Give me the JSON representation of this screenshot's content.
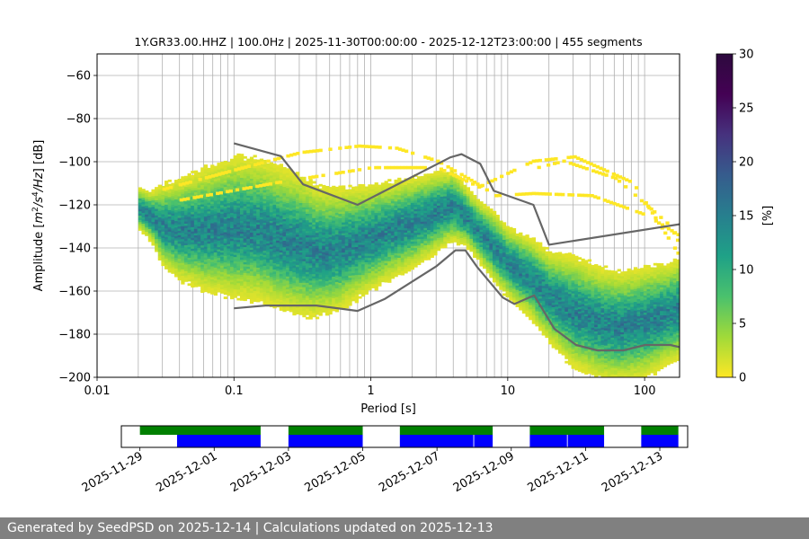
{
  "chart_data": [
    {
      "type": "heatmap",
      "title": "1Y.GR33.00.HHZ | 100.0Hz | 2025-11-30T00:00:00 - 2025-12-12T23:00:00 | 455 segments",
      "xlabel": "Period [s]",
      "ylabel_parts": [
        "Amplitude [",
        "m",
        "2",
        "/",
        "s",
        "4",
        "/",
        "Hz",
        "] [dB]"
      ],
      "x_scale": "log",
      "xlim": [
        0.01,
        180
      ],
      "ylim": [
        -200,
        -50
      ],
      "x_ticks": [
        {
          "value": 0.01,
          "label": "0.01"
        },
        {
          "value": 0.1,
          "label": "0.1"
        },
        {
          "value": 1,
          "label": "1"
        },
        {
          "value": 10,
          "label": "10"
        },
        {
          "value": 100,
          "label": "100"
        }
      ],
      "y_ticks": [
        {
          "value": -60,
          "label": "−60"
        },
        {
          "value": -80,
          "label": "−80"
        },
        {
          "value": -100,
          "label": "−100"
        },
        {
          "value": -120,
          "label": "−120"
        },
        {
          "value": -140,
          "label": "−140"
        },
        {
          "value": -160,
          "label": "−160"
        },
        {
          "value": -180,
          "label": "−180"
        },
        {
          "value": -200,
          "label": "−200"
        }
      ],
      "grid": true,
      "grid_minor_x": true,
      "grid_color": "#b0b0b0",
      "colormap": "viridis_r",
      "psd_core": [
        [
          0.02,
          -122,
          4
        ],
        [
          0.025,
          -126,
          5
        ],
        [
          0.03,
          -130,
          8
        ],
        [
          0.04,
          -132,
          10
        ],
        [
          0.06,
          -132,
          12
        ],
        [
          0.1,
          -131,
          14
        ],
        [
          0.15,
          -132,
          14
        ],
        [
          0.2,
          -135,
          14
        ],
        [
          0.3,
          -139,
          14
        ],
        [
          0.4,
          -142,
          13
        ],
        [
          0.6,
          -141,
          12
        ],
        [
          0.8,
          -138,
          11
        ],
        [
          1.2,
          -134,
          10
        ],
        [
          2,
          -129,
          9
        ],
        [
          3,
          -124,
          8
        ],
        [
          4,
          -121,
          7
        ],
        [
          5,
          -126,
          6
        ],
        [
          6,
          -132,
          6
        ],
        [
          8,
          -140,
          7
        ],
        [
          10,
          -147,
          7
        ],
        [
          15,
          -155,
          8
        ],
        [
          20,
          -163,
          9
        ],
        [
          30,
          -170,
          11
        ],
        [
          50,
          -176,
          11
        ],
        [
          70,
          -177,
          11
        ],
        [
          100,
          -175,
          11
        ],
        [
          150,
          -171,
          10
        ],
        [
          180,
          -169,
          10
        ]
      ],
      "sparse_tracks": [
        {
          "points": [
            [
              0.03,
              -113
            ],
            [
              0.1,
              -104
            ],
            [
              0.3,
              -96
            ],
            [
              0.8,
              -93
            ],
            [
              1.5,
              -94
            ],
            [
              3,
              -100
            ],
            [
              5,
              -108
            ],
            [
              8,
              -116
            ],
            [
              15,
              -115
            ],
            [
              40,
              -116
            ],
            [
              100,
              -125
            ],
            [
              180,
              -135
            ]
          ],
          "width": 1.5
        },
        {
          "points": [
            [
              0.04,
              -118
            ],
            [
              0.2,
              -110
            ],
            [
              1,
              -103
            ],
            [
              3,
              -103
            ],
            [
              6,
              -112
            ],
            [
              15,
              -100
            ],
            [
              30,
              -98
            ],
            [
              80,
              -110
            ],
            [
              180,
              -145
            ]
          ],
          "width": 1.5
        },
        {
          "points": [
            [
              14,
              -104
            ],
            [
              25,
              -100
            ],
            [
              60,
              -108
            ],
            [
              150,
              -130
            ],
            [
              180,
              -140
            ]
          ],
          "width": 1.5
        }
      ],
      "noise_models": {
        "high": [
          [
            0.1,
            -91.5
          ],
          [
            0.22,
            -97.4
          ],
          [
            0.32,
            -110.5
          ],
          [
            0.8,
            -120.0
          ],
          [
            3.8,
            -98.0
          ],
          [
            4.6,
            -96.5
          ],
          [
            6.3,
            -101.0
          ],
          [
            7.9,
            -113.5
          ],
          [
            15.4,
            -120.0
          ],
          [
            20.0,
            -138.5
          ],
          [
            180,
            -129
          ]
        ],
        "low": [
          [
            0.1,
            -168.0
          ],
          [
            0.17,
            -166.7
          ],
          [
            0.4,
            -166.7
          ],
          [
            0.8,
            -169.2
          ],
          [
            1.26,
            -163.7
          ],
          [
            3.0,
            -148.6
          ],
          [
            4.15,
            -141.1
          ],
          [
            4.9,
            -141.1
          ],
          [
            6.0,
            -149.0
          ],
          [
            9.2,
            -163.0
          ],
          [
            11.2,
            -166.0
          ],
          [
            15.6,
            -162.0
          ],
          [
            21.9,
            -177.5
          ],
          [
            31.6,
            -185.0
          ],
          [
            45,
            -187.5
          ],
          [
            70,
            -187.5
          ],
          [
            101,
            -185.0
          ],
          [
            154,
            -185.0
          ],
          [
            180,
            -186
          ]
        ],
        "color": "#666666"
      }
    },
    {
      "type": "colorbar",
      "label": "[%]",
      "range": [
        0,
        30
      ],
      "ticks": [
        {
          "value": 0,
          "label": "0"
        },
        {
          "value": 5,
          "label": "5"
        },
        {
          "value": 10,
          "label": "10"
        },
        {
          "value": 15,
          "label": "15"
        },
        {
          "value": 20,
          "label": "20"
        },
        {
          "value": 25,
          "label": "25"
        },
        {
          "value": 30,
          "label": "30"
        }
      ]
    },
    {
      "type": "timeline",
      "xlim": [
        "2025-11-28T12:00",
        "2025-12-13T18:00"
      ],
      "tick_labels": [
        "2025-11-29",
        "2025-12-01",
        "2025-12-03",
        "2025-12-05",
        "2025-12-07",
        "2025-12-09",
        "2025-12-11",
        "2025-12-13"
      ],
      "ticks": [
        "2025-11-29T00:00",
        "2025-12-01T00:00",
        "2025-12-03T00:00",
        "2025-12-05T00:00",
        "2025-12-07T00:00",
        "2025-12-09T00:00",
        "2025-12-11T00:00",
        "2025-12-13T00:00"
      ],
      "top_track_color": "#008000",
      "bottom_track_color": "#0000ff",
      "top_segments": [
        [
          "2025-11-29T00:00",
          "2025-12-02T06:00"
        ],
        [
          "2025-12-03T00:00",
          "2025-12-05T00:00"
        ],
        [
          "2025-12-06T00:00",
          "2025-12-08T12:00"
        ],
        [
          "2025-12-09T12:00",
          "2025-12-11T12:00"
        ],
        [
          "2025-12-12T12:00",
          "2025-12-13T12:00"
        ]
      ],
      "bottom_segments": [
        [
          "2025-11-30T00:00",
          "2025-12-02T06:00"
        ],
        [
          "2025-12-03T00:00",
          "2025-12-05T00:00"
        ],
        [
          "2025-12-06T00:00",
          "2025-12-07T23:30"
        ],
        [
          "2025-12-08T00:00",
          "2025-12-08T12:00"
        ],
        [
          "2025-12-09T12:00",
          "2025-12-10T12:00"
        ],
        [
          "2025-12-10T12:30",
          "2025-12-11T12:00"
        ],
        [
          "2025-12-12T12:00",
          "2025-12-13T12:00"
        ]
      ]
    }
  ],
  "footer": {
    "text": "Generated by SeedPSD on 2025-12-14 | Calculations updated on 2025-12-13"
  }
}
